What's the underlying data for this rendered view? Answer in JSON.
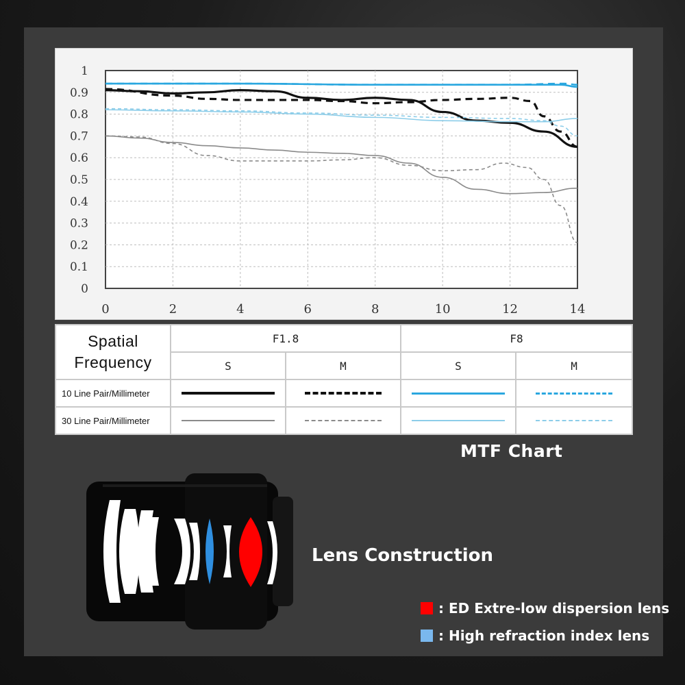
{
  "colors": {
    "panel_bg": "#3b3b3b",
    "f18_line": "#111111",
    "f18_light": "#8a8a8a",
    "f8_line": "#2aa7df",
    "f8_light": "#8ccde9",
    "ed_lens": "#ff0000",
    "hr_lens": "#2f8fe0",
    "hr_key": "#7ab8ee"
  },
  "chart_data": {
    "type": "line",
    "title": "MTF Chart",
    "xlabel": "",
    "ylabel": "",
    "xlim": [
      0,
      14
    ],
    "ylim": [
      0,
      1
    ],
    "x_ticks": [
      "0",
      "2",
      "4",
      "6",
      "8",
      "10",
      "12",
      "14"
    ],
    "y_ticks": [
      "0",
      "0.1",
      "0.2",
      "0.3",
      "0.4",
      "0.5",
      "0.6",
      "0.7",
      "0.8",
      "0.9",
      "1"
    ],
    "grid": true,
    "series": [
      {
        "name": "F1.8 S 10 Line Pair/Millimeter",
        "color": "#111111",
        "dash": "solid",
        "weight": "bold",
        "points": [
          [
            0,
            0.91
          ],
          [
            1,
            0.905
          ],
          [
            2,
            0.895
          ],
          [
            3,
            0.9
          ],
          [
            4,
            0.91
          ],
          [
            5,
            0.905
          ],
          [
            6,
            0.875
          ],
          [
            7,
            0.865
          ],
          [
            8,
            0.875
          ],
          [
            9,
            0.865
          ],
          [
            10,
            0.81
          ],
          [
            11,
            0.77
          ],
          [
            12,
            0.76
          ],
          [
            13,
            0.72
          ],
          [
            14,
            0.65
          ]
        ]
      },
      {
        "name": "F1.8 M 10 Line Pair/Millimeter",
        "color": "#111111",
        "dash": "dashed",
        "weight": "bold",
        "points": [
          [
            0,
            0.915
          ],
          [
            2,
            0.885
          ],
          [
            3,
            0.87
          ],
          [
            4,
            0.865
          ],
          [
            5,
            0.865
          ],
          [
            6,
            0.865
          ],
          [
            7,
            0.86
          ],
          [
            8,
            0.85
          ],
          [
            9,
            0.855
          ],
          [
            10,
            0.865
          ],
          [
            11,
            0.87
          ],
          [
            12,
            0.875
          ],
          [
            12.6,
            0.86
          ],
          [
            13,
            0.79
          ],
          [
            13.5,
            0.72
          ],
          [
            14,
            0.65
          ]
        ]
      },
      {
        "name": "F8 S 10 Line Pair/Millimeter",
        "color": "#2aa7df",
        "dash": "solid",
        "weight": "bold",
        "points": [
          [
            0,
            0.94
          ],
          [
            4,
            0.94
          ],
          [
            8,
            0.935
          ],
          [
            12,
            0.935
          ],
          [
            13.5,
            0.935
          ],
          [
            14,
            0.925
          ]
        ]
      },
      {
        "name": "F8 M 10 Line Pair/Millimeter",
        "color": "#2aa7df",
        "dash": "dashed",
        "weight": "bold",
        "points": [
          [
            0,
            0.94
          ],
          [
            4,
            0.94
          ],
          [
            8,
            0.935
          ],
          [
            12,
            0.935
          ],
          [
            13.6,
            0.94
          ],
          [
            14,
            0.935
          ]
        ]
      },
      {
        "name": "F1.8 S 30 Line Pair/Millimeter",
        "color": "#8a8a8a",
        "dash": "solid",
        "weight": "thin",
        "points": [
          [
            0,
            0.7
          ],
          [
            1,
            0.69
          ],
          [
            2,
            0.67
          ],
          [
            3,
            0.655
          ],
          [
            4,
            0.645
          ],
          [
            5,
            0.635
          ],
          [
            6,
            0.625
          ],
          [
            7,
            0.62
          ],
          [
            8,
            0.61
          ],
          [
            9,
            0.575
          ],
          [
            10,
            0.51
          ],
          [
            11,
            0.455
          ],
          [
            12,
            0.435
          ],
          [
            13,
            0.44
          ],
          [
            14,
            0.46
          ]
        ]
      },
      {
        "name": "F1.8 M 30 Line Pair/Millimeter",
        "color": "#8a8a8a",
        "dash": "dashed",
        "weight": "thin",
        "points": [
          [
            0,
            0.7
          ],
          [
            1,
            0.695
          ],
          [
            2,
            0.665
          ],
          [
            3,
            0.61
          ],
          [
            4,
            0.585
          ],
          [
            5,
            0.585
          ],
          [
            6,
            0.585
          ],
          [
            7,
            0.59
          ],
          [
            8,
            0.6
          ],
          [
            9,
            0.565
          ],
          [
            10,
            0.54
          ],
          [
            11,
            0.545
          ],
          [
            11.8,
            0.575
          ],
          [
            12.5,
            0.555
          ],
          [
            13,
            0.5
          ],
          [
            13.5,
            0.38
          ],
          [
            14,
            0.21
          ]
        ]
      },
      {
        "name": "F8 S 30 Line Pair/Millimeter",
        "color": "#8ccde9",
        "dash": "solid",
        "weight": "thin",
        "points": [
          [
            0,
            0.82
          ],
          [
            2,
            0.815
          ],
          [
            4,
            0.81
          ],
          [
            6,
            0.8
          ],
          [
            8,
            0.785
          ],
          [
            10,
            0.77
          ],
          [
            12,
            0.765
          ],
          [
            13,
            0.765
          ],
          [
            14,
            0.78
          ]
        ]
      },
      {
        "name": "F8 M 30 Line Pair/Millimeter",
        "color": "#8ccde9",
        "dash": "dashed",
        "weight": "thin",
        "points": [
          [
            0,
            0.825
          ],
          [
            2,
            0.82
          ],
          [
            4,
            0.815
          ],
          [
            6,
            0.805
          ],
          [
            8,
            0.795
          ],
          [
            10,
            0.785
          ],
          [
            12,
            0.78
          ],
          [
            13,
            0.77
          ],
          [
            13.5,
            0.745
          ],
          [
            14,
            0.7
          ]
        ]
      }
    ]
  },
  "legend_table": {
    "header_line1": "Spatial",
    "header_line2": "Frequency",
    "aperture_1": "F1.8",
    "aperture_2": "F8",
    "sagittal": "S",
    "meridional": "M",
    "row_10": "10 Line Pair/Millimeter",
    "row_30": "30 Line Pair/Millimeter"
  },
  "lens": {
    "title": "Lens Construction",
    "ed_label": ": ED Extre-low dispersion lens",
    "hr_label": ": High refraction index lens"
  }
}
